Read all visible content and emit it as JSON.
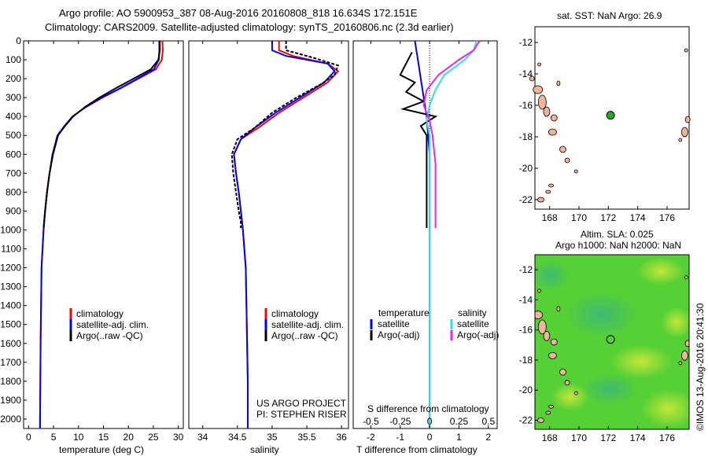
{
  "header": {
    "line1": "Argo profile: AO 5900953_387 08-Aug-2016 20160808_818 16.634S 172.151E",
    "line2": "Climatology: CARS2009. Satellite-adjusted climatology: synTS_20160806.nc (2.3d earlier)"
  },
  "side_stamp": "©IMOS 13-Aug-2016 20:41:30",
  "credits": {
    "line1": "US ARGO PROJECT",
    "line2": "PI: STEPHEN RISER"
  },
  "colors": {
    "climatology": "#ff0000",
    "satellite": "#0000ff",
    "argo": "#000000",
    "sal_sat": "#33dddd",
    "sal_argo": "#ee22ee",
    "land": "#f0b49a"
  },
  "chart_data": [
    {
      "id": "temperature",
      "type": "line",
      "xlabel": "temperature (deg C)",
      "ylabel": "",
      "xlim": [
        -1,
        31
      ],
      "ylim": [
        2050,
        0
      ],
      "xticks": [
        0,
        5,
        10,
        15,
        20,
        25,
        30
      ],
      "yticks": [
        0,
        100,
        200,
        300,
        400,
        500,
        600,
        700,
        800,
        900,
        1000,
        1100,
        1200,
        1300,
        1400,
        1500,
        1600,
        1700,
        1800,
        1900,
        2000
      ],
      "legend": [
        "climatology",
        "satellite-adj. clim.",
        "Argo(..raw -QC)"
      ],
      "series": [
        {
          "name": "climatology",
          "color": "#ff0000",
          "x": [
            26.8,
            26.9,
            26.7,
            25.5,
            22,
            18.5,
            14.8,
            11.5,
            8.8,
            7.2,
            5.8,
            4.8,
            4.2,
            3.7,
            3.3,
            3.0,
            2.8,
            2.6,
            2.5,
            2.4,
            2.35,
            2.3,
            2.3
          ],
          "y": [
            0,
            50,
            100,
            150,
            200,
            250,
            300,
            350,
            400,
            450,
            500,
            600,
            700,
            800,
            900,
            1000,
            1100,
            1200,
            1400,
            1600,
            1800,
            2000,
            2050
          ]
        },
        {
          "name": "satellite-adj. clim.",
          "color": "#0000ff",
          "x": [
            26.2,
            26.2,
            26.1,
            25.1,
            21.8,
            18.4,
            14.7,
            11.4,
            8.8,
            7.2,
            5.8,
            4.8,
            4.2,
            3.7,
            3.3,
            3.0,
            2.8,
            2.6,
            2.5,
            2.4,
            2.35,
            2.3,
            2.3
          ],
          "y": [
            0,
            50,
            100,
            150,
            200,
            250,
            300,
            350,
            400,
            450,
            500,
            600,
            700,
            800,
            900,
            1000,
            1100,
            1200,
            1400,
            1600,
            1800,
            2000,
            2050
          ]
        },
        {
          "name": "Argo(..raw -QC)",
          "color": "#000000",
          "x": [
            26.3,
            26.3,
            26.0,
            24.5,
            21.0,
            17.5,
            14.2,
            11.3,
            8.9,
            7.3,
            5.9,
            4.9,
            4.2,
            3.7,
            3.3,
            3.0
          ],
          "y": [
            0,
            50,
            100,
            150,
            200,
            250,
            300,
            350,
            400,
            450,
            500,
            600,
            700,
            800,
            900,
            990
          ]
        }
      ]
    },
    {
      "id": "salinity",
      "type": "line",
      "xlabel": "salinity",
      "ylabel": "",
      "xlim": [
        33.8,
        36.1
      ],
      "ylim": [
        2050,
        0
      ],
      "xticks": [
        34,
        34.5,
        35,
        35.5,
        36
      ],
      "xticklabels": [
        "34",
        "34.5",
        "35",
        "35.5",
        "36"
      ],
      "legend": [
        "climatology",
        "satellite-adj. clim.",
        "Argo(..raw -QC)"
      ],
      "series": [
        {
          "name": "climatology",
          "color": "#ff0000",
          "x": [
            35.1,
            35.1,
            35.3,
            35.8,
            35.95,
            35.8,
            35.45,
            35.1,
            34.8,
            34.55,
            34.45,
            34.48,
            34.52,
            34.55,
            34.58,
            34.6,
            34.62,
            34.63,
            34.64,
            34.65,
            34.65
          ],
          "y": [
            0,
            50,
            80,
            120,
            160,
            220,
            300,
            380,
            460,
            520,
            600,
            700,
            800,
            900,
            1000,
            1100,
            1200,
            1400,
            1600,
            1800,
            2050
          ]
        },
        {
          "name": "satellite-adj. clim.",
          "color": "#0000ff",
          "x": [
            35.0,
            35.0,
            35.2,
            35.8,
            35.9,
            35.75,
            35.4,
            35.05,
            34.75,
            34.55,
            34.45,
            34.48,
            34.52,
            34.55,
            34.58,
            34.6,
            34.62,
            34.63,
            34.64,
            34.65,
            34.65
          ],
          "y": [
            0,
            50,
            80,
            120,
            160,
            220,
            300,
            380,
            460,
            520,
            600,
            700,
            800,
            900,
            1000,
            1100,
            1200,
            1400,
            1600,
            1800,
            2050
          ]
        },
        {
          "name": "Argo(..raw -QC)",
          "color": "#000000",
          "x": [
            35.2,
            35.2,
            35.6,
            35.95,
            35.9,
            35.7,
            35.35,
            35.0,
            34.75,
            34.5,
            34.42,
            34.44,
            34.48,
            34.52,
            34.55,
            34.55
          ],
          "y": [
            0,
            50,
            90,
            130,
            180,
            230,
            300,
            380,
            460,
            520,
            600,
            700,
            800,
            900,
            960,
            990
          ]
        }
      ]
    },
    {
      "id": "differences",
      "type": "line",
      "xlabel": "T difference from climatology",
      "xlabel_top": "S difference from climatology",
      "xlim": [
        -2.6,
        2.3
      ],
      "ylim": [
        2050,
        0
      ],
      "xticks": [
        -2,
        -1,
        0,
        1,
        2
      ],
      "xticks_top": [
        "-0.5",
        "-0.25",
        "0",
        "0.25",
        "0.5"
      ],
      "legend_groups": [
        {
          "title": "temperature",
          "items": [
            "satellite",
            "Argo(-adj)"
          ]
        },
        {
          "title": "salinity",
          "items": [
            "satellite",
            "Argo(-adj)"
          ]
        }
      ],
      "series": [
        {
          "name": "T satellite",
          "color": "#0000ff",
          "x": [
            -0.5,
            -0.4,
            -0.3,
            -0.2,
            -0.1,
            -0.05,
            0,
            0,
            0,
            0,
            0,
            0,
            0
          ],
          "y": [
            0,
            100,
            200,
            300,
            400,
            500,
            600,
            700,
            800,
            1000,
            1400,
            1800,
            2050
          ]
        },
        {
          "name": "T Argo(-adj)",
          "color": "#000000",
          "x": [
            -0.6,
            -0.8,
            -1.0,
            -0.5,
            -0.8,
            -0.2,
            -0.9,
            0.2,
            -0.3,
            -0.1,
            -0.1,
            -0.1,
            -0.1
          ],
          "y": [
            60,
            120,
            180,
            220,
            270,
            320,
            360,
            400,
            450,
            500,
            600,
            800,
            990
          ]
        },
        {
          "name": "S satellite",
          "color": "#33dddd",
          "x": [
            1.6,
            1.5,
            1.2,
            0.5,
            0.2,
            0,
            -0.1,
            0,
            0,
            0,
            0,
            0
          ],
          "y": [
            0,
            50,
            100,
            180,
            260,
            340,
            420,
            500,
            600,
            800,
            1400,
            2050
          ]
        },
        {
          "name": "S Argo(-adj)",
          "color": "#ee22ee",
          "x": [
            1.7,
            1.5,
            1.0,
            0.3,
            -0.1,
            -0.2,
            0,
            0.1,
            0.2,
            0.2,
            0.2,
            0.2
          ],
          "y": [
            0,
            50,
            100,
            180,
            260,
            340,
            420,
            500,
            650,
            800,
            900,
            990
          ]
        }
      ]
    },
    {
      "id": "sst_map",
      "type": "map",
      "title": "sat. SST: NaN Argo: 26.9",
      "xlim": [
        167,
        177.5
      ],
      "ylim": [
        -22.6,
        -11
      ],
      "xticks": [
        "168",
        "170",
        "172",
        "174",
        "176"
      ],
      "yticks": [
        "-12",
        "-14",
        "-16",
        "-18",
        "-20",
        "-22"
      ],
      "marker": {
        "lon": 172.15,
        "lat": -16.63,
        "color": "#22aa22"
      }
    },
    {
      "id": "sla_map",
      "type": "map",
      "title_line1": "Altim. SLA: 0.025",
      "title_line2": "Argo h1000: NaN h2000: NaN",
      "xlim": [
        167,
        177.5
      ],
      "ylim": [
        -22.6,
        -11
      ],
      "xticks": [
        "168",
        "170",
        "172",
        "174",
        "176"
      ],
      "yticks": [
        "-12",
        "-14",
        "-16",
        "-18",
        "-20",
        "-22"
      ],
      "marker": {
        "lon": 172.15,
        "lat": -16.63
      }
    }
  ]
}
